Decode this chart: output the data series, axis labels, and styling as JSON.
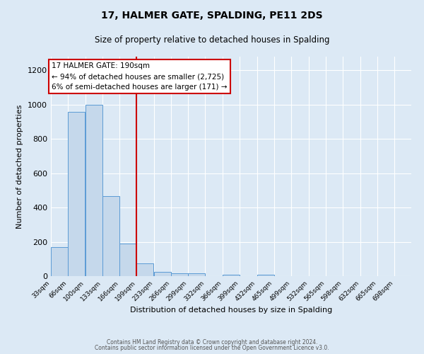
{
  "title": "17, HALMER GATE, SPALDING, PE11 2DS",
  "subtitle": "Size of property relative to detached houses in Spalding",
  "xlabel": "Distribution of detached houses by size in Spalding",
  "ylabel": "Number of detached properties",
  "bin_labels": [
    "33sqm",
    "66sqm",
    "100sqm",
    "133sqm",
    "166sqm",
    "199sqm",
    "233sqm",
    "266sqm",
    "299sqm",
    "332sqm",
    "366sqm",
    "399sqm",
    "432sqm",
    "465sqm",
    "499sqm",
    "532sqm",
    "565sqm",
    "598sqm",
    "632sqm",
    "665sqm",
    "698sqm"
  ],
  "bin_edges": [
    33,
    66,
    100,
    133,
    166,
    199,
    233,
    266,
    299,
    332,
    366,
    399,
    432,
    465,
    499,
    532,
    565,
    598,
    632,
    665,
    698
  ],
  "bar_values": [
    170,
    960,
    1000,
    465,
    190,
    75,
    25,
    15,
    15,
    0,
    10,
    0,
    10,
    0,
    0,
    0,
    0,
    0,
    0,
    0,
    0
  ],
  "bar_color": "#c5d8eb",
  "bar_edge_color": "#5b9bd5",
  "vline_x": 199,
  "vline_color": "#cc0000",
  "annotation_title": "17 HALMER GATE: 190sqm",
  "annotation_line1": "← 94% of detached houses are smaller (2,725)",
  "annotation_line2": "6% of semi-detached houses are larger (171) →",
  "annotation_box_color": "#ffffff",
  "annotation_box_edge_color": "#cc0000",
  "ylim": [
    0,
    1280
  ],
  "yticks": [
    0,
    200,
    400,
    600,
    800,
    1000,
    1200
  ],
  "background_color": "#dce9f5",
  "footer1": "Contains HM Land Registry data © Crown copyright and database right 2024.",
  "footer2": "Contains public sector information licensed under the Open Government Licence v3.0."
}
